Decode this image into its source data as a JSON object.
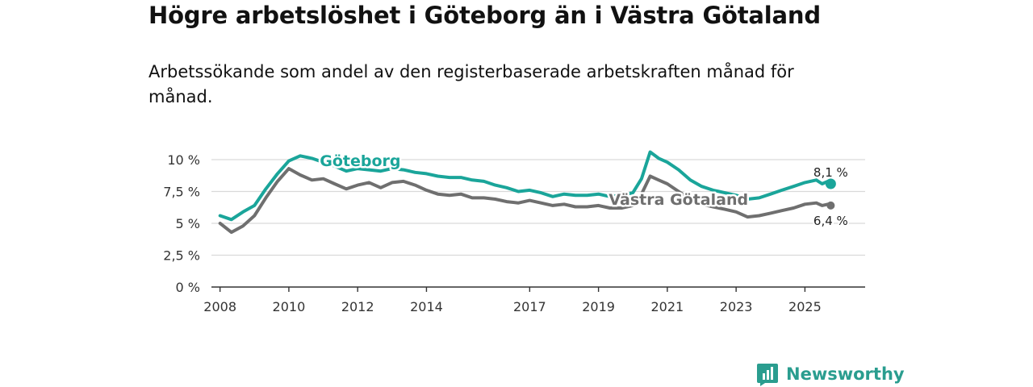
{
  "title": "Högre arbetslöshet i Göteborg än i Västra Götaland",
  "subtitle": "Arbetssökande som andel av den registerbaserade arbetskraften månad för månad.",
  "brand": {
    "name": "Newsworthy",
    "icon": "newsworthy-logo-icon"
  },
  "colors": {
    "goteborg": "#1aa59a",
    "vastra": "#6f6f6f",
    "grid": "#d9d9d9",
    "axis": "#333333"
  },
  "chart_data": {
    "type": "line",
    "ylim": [
      0,
      11
    ],
    "xlim": [
      2007.75,
      2026.75
    ],
    "grid": true,
    "y_ticks": [
      {
        "value": 0,
        "label": "0 %"
      },
      {
        "value": 2.5,
        "label": "2,5 %"
      },
      {
        "value": 5,
        "label": "5 %"
      },
      {
        "value": 7.5,
        "label": "7,5 %"
      },
      {
        "value": 10,
        "label": "10 %"
      }
    ],
    "x_ticks": [
      {
        "value": 2008,
        "label": "2008"
      },
      {
        "value": 2010,
        "label": "2010"
      },
      {
        "value": 2012,
        "label": "2012"
      },
      {
        "value": 2014,
        "label": "2014"
      },
      {
        "value": 2017,
        "label": "2017"
      },
      {
        "value": 2019,
        "label": "2019"
      },
      {
        "value": 2021,
        "label": "2021"
      },
      {
        "value": 2023,
        "label": "2023"
      },
      {
        "value": 2025,
        "label": "2025"
      }
    ],
    "series": [
      {
        "name": "Göteborg",
        "key": "goteborg",
        "label_text": "Göteborg",
        "label_at": [
          2010.9,
          9.5
        ],
        "end_label": "8,1 %",
        "x": [
          2008.0,
          2008.33,
          2008.67,
          2009.0,
          2009.33,
          2009.67,
          2010.0,
          2010.33,
          2010.67,
          2011.0,
          2011.33,
          2011.67,
          2012.0,
          2012.33,
          2012.67,
          2013.0,
          2013.33,
          2013.67,
          2014.0,
          2014.33,
          2014.67,
          2015.0,
          2015.33,
          2015.67,
          2016.0,
          2016.33,
          2016.67,
          2017.0,
          2017.33,
          2017.67,
          2018.0,
          2018.33,
          2018.67,
          2019.0,
          2019.33,
          2019.67,
          2020.0,
          2020.25,
          2020.5,
          2020.75,
          2021.0,
          2021.33,
          2021.67,
          2022.0,
          2022.33,
          2022.67,
          2023.0,
          2023.33,
          2023.67,
          2024.0,
          2024.33,
          2024.67,
          2025.0,
          2025.33,
          2025.5,
          2025.67,
          2025.75
        ],
        "values": [
          5.6,
          5.3,
          5.9,
          6.4,
          7.7,
          8.9,
          9.9,
          10.3,
          10.1,
          9.8,
          9.5,
          9.1,
          9.3,
          9.2,
          9.1,
          9.3,
          9.2,
          9.0,
          8.9,
          8.7,
          8.6,
          8.6,
          8.4,
          8.3,
          8.0,
          7.8,
          7.5,
          7.6,
          7.4,
          7.1,
          7.3,
          7.2,
          7.2,
          7.3,
          7.1,
          7.2,
          7.4,
          8.5,
          10.6,
          10.1,
          9.8,
          9.2,
          8.4,
          7.9,
          7.6,
          7.4,
          7.2,
          6.9,
          7.0,
          7.3,
          7.6,
          7.9,
          8.2,
          8.4,
          8.1,
          8.3,
          8.1
        ]
      },
      {
        "name": "Västra Götaland",
        "key": "vastra",
        "label_text": "Västra Götaland",
        "label_at": [
          2019.3,
          6.45
        ],
        "end_label": "6,4 %",
        "x": [
          2008.0,
          2008.33,
          2008.67,
          2009.0,
          2009.33,
          2009.67,
          2010.0,
          2010.33,
          2010.67,
          2011.0,
          2011.33,
          2011.67,
          2012.0,
          2012.33,
          2012.67,
          2013.0,
          2013.33,
          2013.67,
          2014.0,
          2014.33,
          2014.67,
          2015.0,
          2015.33,
          2015.67,
          2016.0,
          2016.33,
          2016.67,
          2017.0,
          2017.33,
          2017.67,
          2018.0,
          2018.33,
          2018.67,
          2019.0,
          2019.33,
          2019.67,
          2020.0,
          2020.25,
          2020.5,
          2020.75,
          2021.0,
          2021.33,
          2021.67,
          2022.0,
          2022.33,
          2022.67,
          2023.0,
          2023.33,
          2023.67,
          2024.0,
          2024.33,
          2024.67,
          2025.0,
          2025.33,
          2025.5,
          2025.67,
          2025.75
        ],
        "values": [
          5.0,
          4.3,
          4.8,
          5.6,
          7.0,
          8.3,
          9.3,
          8.8,
          8.4,
          8.5,
          8.1,
          7.7,
          8.0,
          8.2,
          7.8,
          8.2,
          8.3,
          8.0,
          7.6,
          7.3,
          7.2,
          7.3,
          7.0,
          7.0,
          6.9,
          6.7,
          6.6,
          6.8,
          6.6,
          6.4,
          6.5,
          6.3,
          6.3,
          6.4,
          6.2,
          6.2,
          6.4,
          7.3,
          8.7,
          8.4,
          8.1,
          7.5,
          6.9,
          6.5,
          6.3,
          6.1,
          5.9,
          5.5,
          5.6,
          5.8,
          6.0,
          6.2,
          6.5,
          6.6,
          6.4,
          6.5,
          6.4
        ]
      }
    ]
  }
}
